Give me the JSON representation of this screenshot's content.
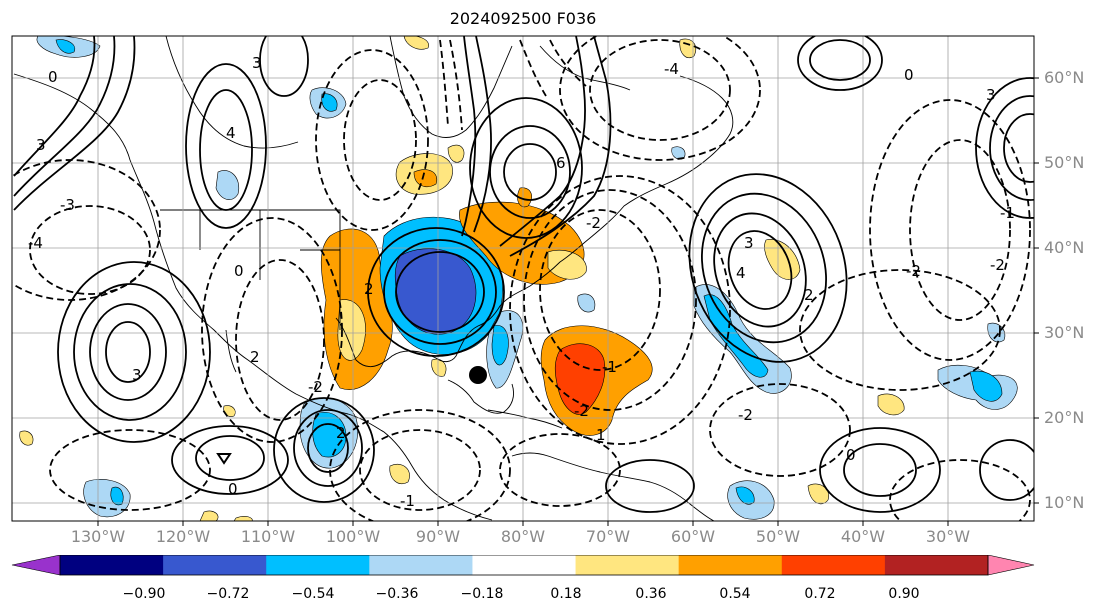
{
  "title": "2024092500 F036",
  "latitude_labels": [
    "60°N",
    "50°N",
    "40°N",
    "30°N",
    "20°N",
    "10°N"
  ],
  "longitude_labels": [
    "130°W",
    "120°W",
    "110°W",
    "100°W",
    "90°W",
    "80°W",
    "70°W",
    "60°W",
    "50°W",
    "40°W",
    "30°W"
  ],
  "colorbar": {
    "ticks": [
      "−0.90",
      "−0.72",
      "−0.54",
      "−0.36",
      "−0.18",
      "0.18",
      "0.36",
      "0.54",
      "0.72",
      "0.90"
    ],
    "colors": [
      "#9932cc",
      "#000080",
      "#3858cf",
      "#00bfff",
      "#add8f5",
      "#ffffff",
      "#ffe680",
      "#ffa000",
      "#ff4000",
      "#b22222",
      "#ff85b0"
    ],
    "extend": "both"
  },
  "contour_labels": [
    {
      "text": "0"
    },
    {
      "text": "3"
    },
    {
      "text": "4"
    },
    {
      "text": "3"
    },
    {
      "text": "-3"
    },
    {
      "text": "-4"
    },
    {
      "text": "2"
    },
    {
      "text": "0"
    },
    {
      "text": "3"
    },
    {
      "text": "2"
    },
    {
      "text": "-2"
    },
    {
      "text": "6"
    },
    {
      "text": "-2"
    },
    {
      "text": "4"
    },
    {
      "text": "3"
    },
    {
      "text": "2"
    },
    {
      "text": "-1"
    },
    {
      "text": "-2"
    },
    {
      "text": "0"
    },
    {
      "text": "3"
    },
    {
      "text": "-4"
    },
    {
      "text": "0"
    },
    {
      "text": "-1"
    },
    {
      "text": "-2"
    },
    {
      "text": "-2"
    },
    {
      "text": "-1"
    },
    {
      "text": "-2"
    },
    {
      "text": "0"
    },
    {
      "text": "2"
    },
    {
      "text": "1"
    }
  ],
  "marker": {
    "type": "storm-center-dot",
    "color": "#000000"
  }
}
